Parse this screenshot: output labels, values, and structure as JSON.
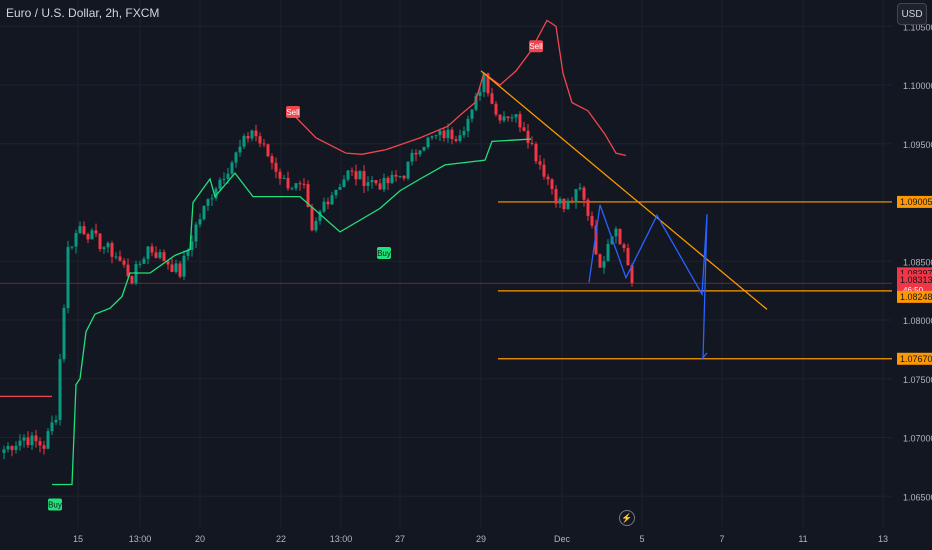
{
  "header": {
    "title": "Euro / U.S. Dollar, 2h, FXCM"
  },
  "toolbar": {
    "currency_label": "USD"
  },
  "icons": {
    "lightning": "lightning-icon"
  },
  "chart_data": {
    "type": "candlestick",
    "symbol": "EURUSD",
    "timeframe": "2h",
    "ylim": [
      1.0625,
      1.1035
    ],
    "y_ticks": [
      "1.06500",
      "1.07000",
      "1.07500",
      "1.08000",
      "1.08500",
      "1.09500",
      "1.10000",
      "1.10500"
    ],
    "x_ticks": [
      "15",
      "13:00",
      "20",
      "22",
      "13:00",
      "27",
      "29",
      "Dec",
      "5",
      "7",
      "11",
      "13"
    ],
    "price_labels": [
      {
        "value": "1.08397",
        "color": "#f23645"
      },
      {
        "value": "1.09005",
        "color": "#ff9800"
      },
      {
        "value": "1.08313",
        "sub": "46:50",
        "color": "#f23645"
      },
      {
        "value": "1.08248",
        "color": "#ff9800"
      },
      {
        "value": "1.07670",
        "color": "#ff9800"
      }
    ],
    "signals": [
      {
        "label": "Buy",
        "type": "buy"
      },
      {
        "label": "Sell",
        "type": "sell"
      },
      {
        "label": "Buy",
        "type": "buy"
      },
      {
        "label": "Sell",
        "type": "sell"
      }
    ],
    "horizontal_levels": [
      1.09005,
      1.08248,
      1.0767
    ],
    "current_price": 1.08313,
    "trendline": {
      "from": 1.1012,
      "to": 1.0809
    },
    "projection": [
      1.0832,
      1.0898,
      1.0836,
      1.0889,
      1.0822,
      1.089,
      1.0767,
      1.0772
    ],
    "colors": {
      "up": "#089981",
      "down": "#f23645",
      "buy_line": "#22e07a",
      "sell_line": "#f0464f",
      "level": "#ff9800",
      "projection": "#2962ff"
    }
  }
}
